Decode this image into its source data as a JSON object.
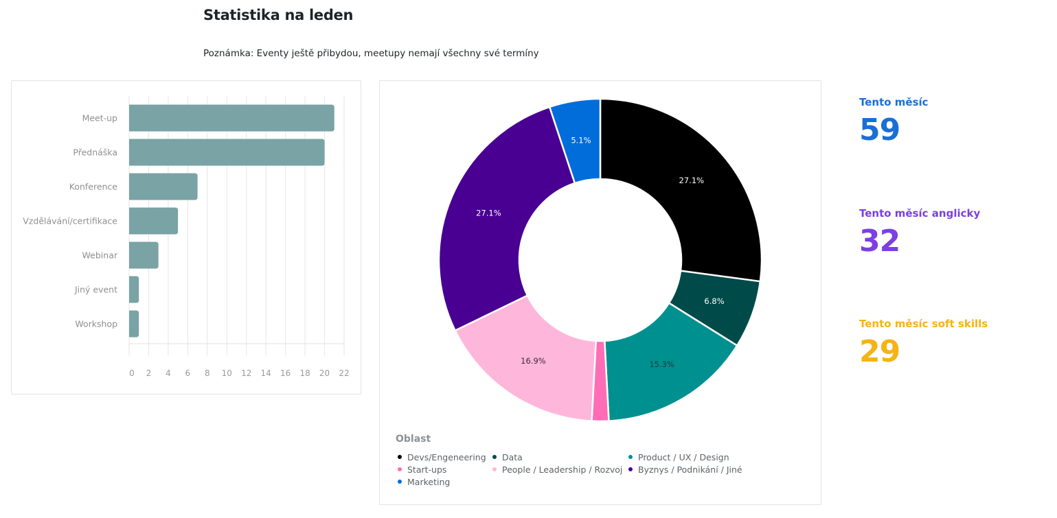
{
  "header": {
    "title": "Statistika na leden",
    "note": "Poznámka: Eventy ještě přibydou, meetupy nemají všechny své termíny"
  },
  "chart_data": [
    {
      "type": "bar",
      "orientation": "horizontal",
      "title": "",
      "xlabel": "",
      "ylabel": "",
      "categories": [
        "Meet-up",
        "Přednáška",
        "Konference",
        "Vzdělávání/certifikace",
        "Webinar",
        "Jiný event",
        "Workshop"
      ],
      "values": [
        21,
        20,
        7,
        5,
        3,
        1,
        1
      ],
      "xlim": [
        0,
        22
      ],
      "x_ticks": [
        0,
        2,
        4,
        6,
        8,
        10,
        12,
        14,
        16,
        18,
        20,
        22
      ],
      "grid": true,
      "bar_color": "#79a3a4"
    },
    {
      "type": "pie",
      "variant": "donut",
      "legend_title": "Oblast",
      "legend_position": "bottom-left",
      "slices": [
        {
          "label": "Devs/Engeneering",
          "value": 16,
          "percent_label": "27.1%",
          "color": "#000000",
          "text_color": "#ffffff"
        },
        {
          "label": "Data",
          "value": 4,
          "percent_label": "6.8%",
          "color": "#004a4a",
          "text_color": "#ffffff"
        },
        {
          "label": "Product / UX / Design",
          "value": 9,
          "percent_label": "15.3%",
          "color": "#009090",
          "text_color": "#1e3a3a"
        },
        {
          "label": "Start-ups",
          "value": 1,
          "percent_label": "",
          "color": "#ff6db6",
          "text_color": "#1f2328"
        },
        {
          "label": "People / Leadership / Rozvoj",
          "value": 10,
          "percent_label": "16.9%",
          "color": "#ffb6db",
          "text_color": "#3a2a30"
        },
        {
          "label": "Byznys / Podnikání / Jiné",
          "value": 16,
          "percent_label": "27.1%",
          "color": "#490092",
          "text_color": "#ffffff"
        },
        {
          "label": "Marketing",
          "value": 3,
          "percent_label": "5.1%",
          "color": "#006ddb",
          "text_color": "#ffffff"
        }
      ]
    }
  ],
  "kpis": [
    {
      "label": "Tento měsíc",
      "value": "59",
      "color": "#1a6fd6"
    },
    {
      "label": "Tento měsíc anglicky",
      "value": "32",
      "color": "#7b3fe4"
    },
    {
      "label": "Tento měsíc soft skills",
      "value": "29",
      "color": "#f5b316"
    }
  ]
}
